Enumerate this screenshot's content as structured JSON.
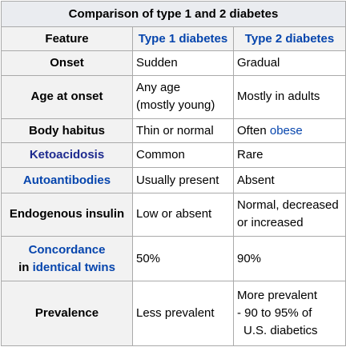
{
  "table": {
    "title": "Comparison of type 1 and 2 diabetes",
    "headers": {
      "feature": "Feature",
      "type1": "Type 1 diabetes",
      "type2": "Type 2 diabetes"
    },
    "rows": {
      "onset": {
        "feature": "Onset",
        "type1": "Sudden",
        "type2": "Gradual"
      },
      "age": {
        "feature": "Age at onset",
        "type1_line1": "Any age",
        "type1_line2": "(mostly young)",
        "type2": "Mostly in adults"
      },
      "habitus": {
        "feature": "Body habitus",
        "type1": "Thin or normal",
        "type2_prefix": "Often ",
        "type2_link": "obese"
      },
      "keto": {
        "feature": "Ketoacidosis",
        "type1": "Common",
        "type2": "Rare"
      },
      "auto": {
        "feature": "Autoantibodies",
        "type1": "Usually present",
        "type2": "Absent"
      },
      "insulin": {
        "feature": "Endogenous insulin",
        "type1": "Low or absent",
        "type2_line1": "Normal, decreased",
        "type2_line2": "or increased"
      },
      "concordance": {
        "feature_line1": "Concordance",
        "feature_prefix": "in ",
        "feature_link": "identical twins",
        "type1": "50%",
        "type2": "90%"
      },
      "prevalence": {
        "feature": "Prevalence",
        "type1": "Less prevalent",
        "type2_line1": "More prevalent",
        "type2_line2": "- 90 to 95% of",
        "type2_line3": "U.S. diabetics"
      }
    }
  },
  "colors": {
    "link": "#0645ad",
    "border": "#aaaaaa",
    "caption_bg": "#eaecf0",
    "header_bg": "#f2f2f2"
  }
}
